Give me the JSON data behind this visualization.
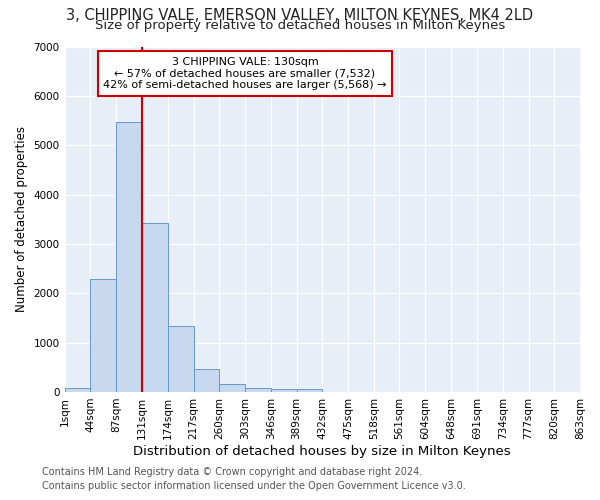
{
  "title": "3, CHIPPING VALE, EMERSON VALLEY, MILTON KEYNES, MK4 2LD",
  "subtitle": "Size of property relative to detached houses in Milton Keynes",
  "xlabel": "Distribution of detached houses by size in Milton Keynes",
  "ylabel": "Number of detached properties",
  "annotation_line1": "3 CHIPPING VALE: 130sqm",
  "annotation_line2": "← 57% of detached houses are smaller (7,532)",
  "annotation_line3": "42% of semi-detached houses are larger (5,568) →",
  "bar_color": "#c8d8ee",
  "bar_edge_color": "#6699cc",
  "bin_edges": [
    1,
    44,
    87,
    131,
    174,
    217,
    260,
    303,
    346,
    389,
    432,
    475,
    518,
    561,
    604,
    648,
    691,
    734,
    777,
    820,
    863
  ],
  "bar_heights": [
    80,
    2280,
    5480,
    3430,
    1330,
    470,
    165,
    80,
    65,
    65,
    0,
    0,
    0,
    0,
    0,
    0,
    0,
    0,
    0,
    0
  ],
  "red_line_x": 131,
  "ylim": [
    0,
    7000
  ],
  "yticks": [
    0,
    1000,
    2000,
    3000,
    4000,
    5000,
    6000,
    7000
  ],
  "background_color": "#e8eef8",
  "grid_color": "#ffffff",
  "footer_line1": "Contains HM Land Registry data © Crown copyright and database right 2024.",
  "footer_line2": "Contains public sector information licensed under the Open Government Licence v3.0.",
  "annotation_box_edge": "#cc0000",
  "red_line_color": "#cc0000",
  "title_fontsize": 10.5,
  "subtitle_fontsize": 9.5,
  "xlabel_fontsize": 9.5,
  "ylabel_fontsize": 8.5,
  "tick_fontsize": 7.5,
  "annotation_fontsize": 8,
  "footer_fontsize": 7
}
